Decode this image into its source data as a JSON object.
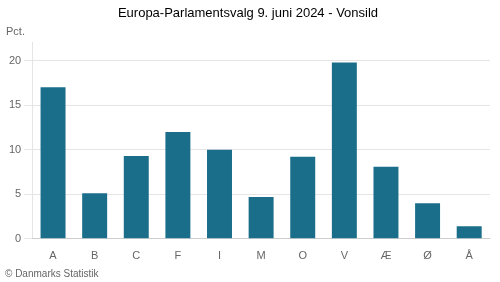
{
  "chart_data": {
    "type": "bar",
    "title": "Europa-Parlamentsvalg 9. juni 2024 - Vonsild",
    "ylabel": "Pct.",
    "footer": "© Danmarks Statistik",
    "categories": [
      "A",
      "B",
      "C",
      "F",
      "I",
      "M",
      "O",
      "V",
      "Æ",
      "Ø",
      "Å"
    ],
    "values": [
      17.0,
      5.1,
      9.3,
      12.0,
      10.0,
      4.7,
      9.2,
      19.8,
      8.1,
      4.0,
      1.4
    ],
    "color": "#1a6e8a",
    "ylim": [
      0,
      22
    ],
    "yticks": [
      0,
      5,
      10,
      15,
      20
    ],
    "grid": true
  }
}
